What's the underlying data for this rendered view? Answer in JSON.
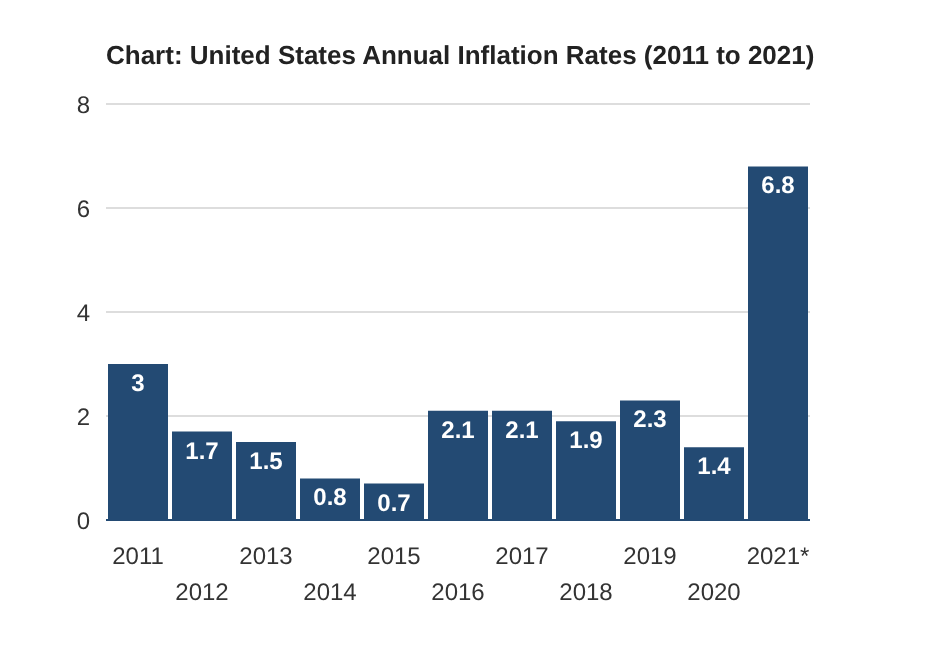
{
  "chart_data": {
    "type": "bar",
    "title": "Chart: United States Annual Inflation Rates (2011 to 2021)",
    "categories": [
      "2011",
      "2012",
      "2013",
      "2014",
      "2015",
      "2016",
      "2017",
      "2018",
      "2019",
      "2020",
      "2021*"
    ],
    "values": [
      3,
      1.7,
      1.5,
      0.8,
      0.7,
      2.1,
      2.1,
      1.9,
      2.3,
      1.4,
      6.8
    ],
    "color": "#234a73",
    "ylim": [
      0,
      8
    ],
    "yticks": [
      0,
      2,
      4,
      6,
      8
    ],
    "grid": "y",
    "data_labels": true
  }
}
